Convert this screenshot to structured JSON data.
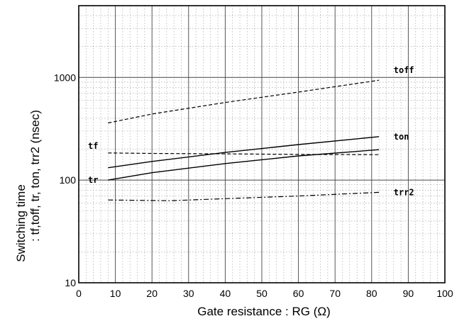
{
  "chart_data": {
    "type": "line",
    "xlabel": "Gate resistance : RG (Ω)",
    "ylabel_line1": "Switching time",
    "ylabel_line2": ": tf,toff, tr, ton, trr2 (nsec)",
    "xlim": [
      0,
      100
    ],
    "ylim": [
      10,
      5000
    ],
    "y_scale": "log",
    "grid": true,
    "x_ticks": [
      0,
      10,
      20,
      30,
      40,
      50,
      60,
      70,
      80,
      90,
      100
    ],
    "y_ticks": [
      {
        "value": 10,
        "label": "10"
      },
      {
        "value": 100,
        "label": "100"
      },
      {
        "value": 1000,
        "label": "1000"
      }
    ],
    "series": [
      {
        "name": "toff",
        "style": "dashed",
        "x": [
          8,
          20,
          40,
          60,
          82
        ],
        "y": [
          360,
          440,
          570,
          720,
          940
        ]
      },
      {
        "name": "ton",
        "style": "solid",
        "x": [
          8,
          20,
          40,
          60,
          82
        ],
        "y": [
          132,
          152,
          186,
          222,
          265
        ]
      },
      {
        "name": "tf",
        "style": "dashed",
        "x": [
          8,
          20,
          40,
          60,
          82
        ],
        "y": [
          184,
          182,
          180,
          178,
          177
        ]
      },
      {
        "name": "tr",
        "style": "solid",
        "x": [
          8,
          20,
          40,
          60,
          82
        ],
        "y": [
          100,
          118,
          145,
          172,
          198
        ]
      },
      {
        "name": "trr2",
        "style": "dashdot",
        "x": [
          8,
          25,
          40,
          60,
          82
        ],
        "y": [
          64,
          63,
          66,
          70,
          76
        ]
      }
    ]
  }
}
